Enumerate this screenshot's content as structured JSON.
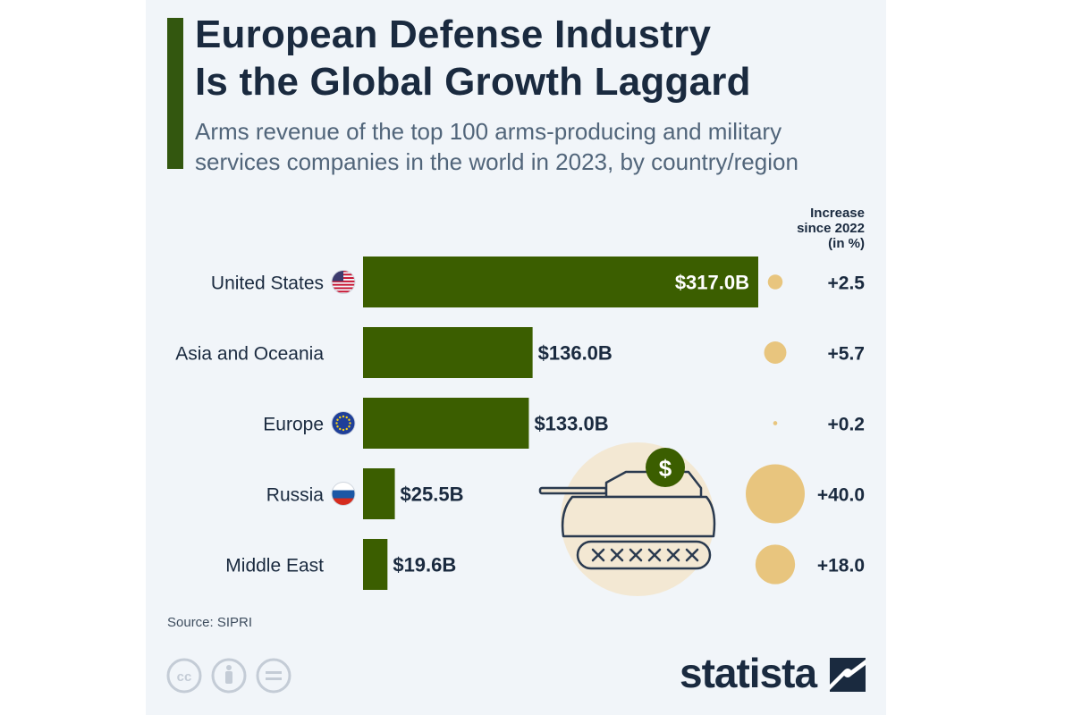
{
  "header": {
    "title_line1": "European Defense Industry",
    "title_line2": "Is the Global Growth Laggard",
    "subtitle_line1": "Arms revenue of the top 100 arms-producing and military",
    "subtitle_line2": "services companies in the world in 2023, by country/region"
  },
  "increase_header": {
    "line1": "Increase",
    "line2": "since 2022",
    "line3": "(in %)"
  },
  "footer": {
    "source": "Source: SIPRI",
    "brand": "statista"
  },
  "colors": {
    "bar": "#3b5e00",
    "bubble": "#e8c57e",
    "text_dark": "#1a2a3f",
    "panel": "#f1f5f9",
    "tank_circle": "#f3e8d3"
  },
  "icons": [
    "us-flag-icon",
    "eu-flag-icon",
    "russia-flag-icon",
    "tank-icon",
    "dollar-coin-icon",
    "cc-icon",
    "attribution-icon",
    "noderivs-icon",
    "statista-logo-icon"
  ],
  "chart_data": {
    "type": "bar",
    "orientation": "horizontal",
    "categories": [
      "United States",
      "Asia and Oceania",
      "Europe",
      "Russia",
      "Middle East"
    ],
    "series": [
      {
        "values": [
          317.0,
          136.0,
          133.0,
          25.5,
          19.6
        ]
      },
      {
        "values": [
          2.5,
          5.7,
          0.2,
          40.0,
          18.0
        ]
      }
    ],
    "value_labels": [
      "$317.0B",
      "$136.0B",
      "$133.0B",
      "$25.5B",
      "$19.6B"
    ],
    "increase_labels": [
      "+2.5",
      "+5.7",
      "+0.2",
      "+40.0",
      "+18.0"
    ],
    "flags": [
      "us-flag-icon",
      "",
      "eu-flag-icon",
      "russia-flag-icon",
      ""
    ],
    "title": "European Defense Industry Is the Global Growth Laggard",
    "legend": "none",
    "grid": false
  }
}
